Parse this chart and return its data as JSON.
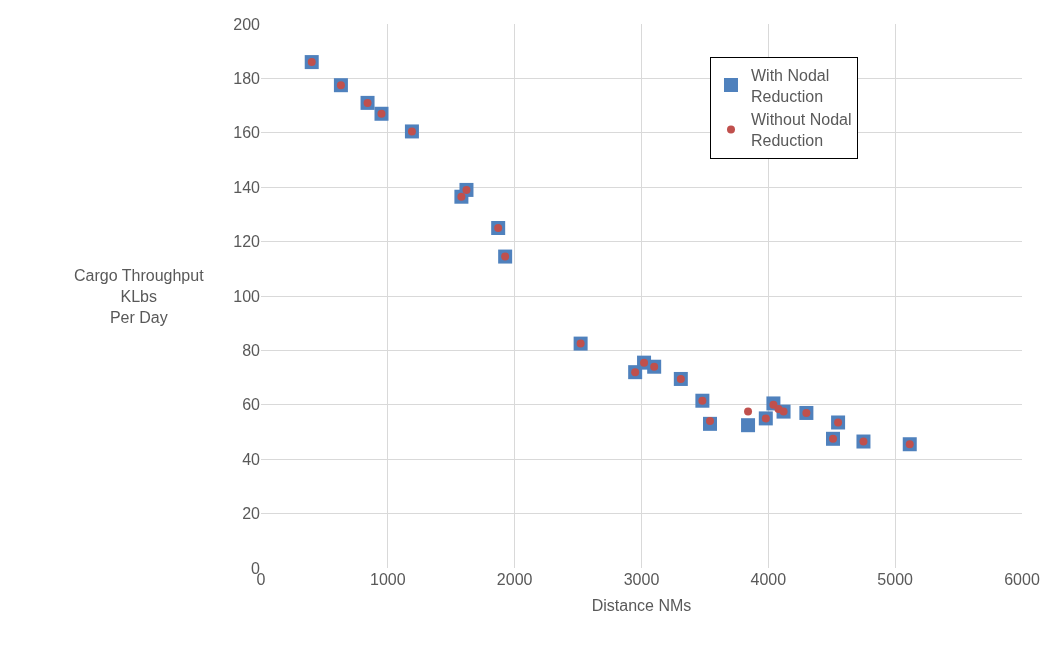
{
  "chart_data": {
    "type": "scatter",
    "xlabel": "Distance NMs",
    "ylabel": "Cargo Throughput\nKLbs\nPer Day",
    "xlim": [
      0,
      6000
    ],
    "xticks": [
      0,
      1000,
      2000,
      3000,
      4000,
      5000,
      6000
    ],
    "ylim": [
      0,
      200
    ],
    "yticks": [
      0,
      20,
      40,
      60,
      80,
      100,
      120,
      140,
      160,
      180,
      200
    ],
    "grid": true,
    "legend": "top right",
    "series": [
      {
        "name": "With Nodal Reduction",
        "color": "#4f81bd",
        "marker": "square",
        "x": [
          400,
          630,
          840,
          950,
          1190,
          1580,
          1620,
          1870,
          1925,
          2520,
          2950,
          3020,
          3100,
          3310,
          3480,
          3540,
          3840,
          3980,
          4040,
          4080,
          4120,
          4300,
          4510,
          4550,
          4750,
          5115
        ],
        "values": [
          186,
          177.5,
          171,
          167,
          160.5,
          136.5,
          139,
          125,
          114.5,
          82.5,
          72,
          75.5,
          74,
          69.5,
          61.5,
          53,
          52.5,
          55,
          60.5,
          null,
          57.5,
          57,
          47.5,
          53.5,
          46.5,
          45.5
        ]
      },
      {
        "name": "Without Nodal Reduction",
        "color": "#c0504d",
        "marker": "circle",
        "x": [
          400,
          630,
          840,
          950,
          1190,
          1580,
          1620,
          1870,
          1925,
          2520,
          2950,
          3020,
          3100,
          3310,
          3480,
          3540,
          3840,
          3980,
          4040,
          4080,
          4120,
          4300,
          4510,
          4550,
          4750,
          5115
        ],
        "values": [
          186,
          177.5,
          171,
          167,
          160.5,
          136.5,
          139,
          125,
          114.5,
          82.5,
          72,
          75.5,
          74,
          69.5,
          61.5,
          54,
          57.5,
          55,
          60,
          58.5,
          57.5,
          57,
          47.5,
          53.5,
          46.5,
          45.5
        ]
      }
    ]
  }
}
